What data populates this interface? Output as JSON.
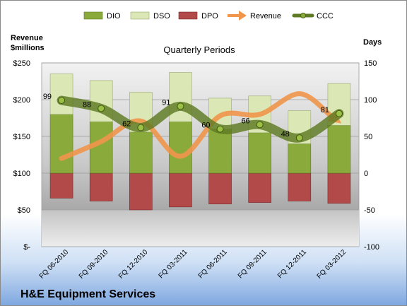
{
  "chart_data": {
    "type": "bar",
    "title": "Quarterly Periods",
    "company": "H&E Equipment Services",
    "left_axis": {
      "label_line1": "Revenue",
      "label_line2": "$millions",
      "ylim": [
        0,
        250
      ],
      "ticks": [
        0,
        50,
        100,
        150,
        200,
        250
      ],
      "tick_labels": [
        "$-",
        "$50",
        "$100",
        "$150",
        "$200",
        "$250"
      ]
    },
    "right_axis": {
      "label": "Days",
      "ylim": [
        -100,
        150
      ],
      "ticks": [
        -100,
        -50,
        0,
        50,
        100,
        150
      ],
      "tick_labels": [
        "-100",
        "-50",
        "0",
        "50",
        "100",
        "150"
      ]
    },
    "categories": [
      "FQ 06-2010",
      "FQ 09-2010",
      "FQ 12-2010",
      "FQ 03-2011",
      "FQ 06-2011",
      "FQ 09-2011",
      "FQ 12-2011",
      "FQ 03-2012"
    ],
    "series": [
      {
        "name": "DIO",
        "axis": "right",
        "kind": "stacked-bar",
        "color": "#8aab3c",
        "values": [
          80,
          70,
          56,
          70,
          60,
          55,
          40,
          65
        ]
      },
      {
        "name": "DSO",
        "axis": "right",
        "kind": "stacked-bar",
        "color": "#dbe7b4",
        "values": [
          55,
          56,
          54,
          67,
          42,
          50,
          45,
          57
        ]
      },
      {
        "name": "DPO",
        "axis": "right",
        "kind": "negative-bar",
        "color": "#b24a4a",
        "values": [
          -34,
          -38,
          -50,
          -46,
          -42,
          -40,
          -38,
          -41
        ]
      },
      {
        "name": "Revenue",
        "axis": "left",
        "kind": "line",
        "color": "#f0954a",
        "values": [
          120,
          143,
          171,
          123,
          178,
          180,
          208,
          170
        ]
      },
      {
        "name": "CCC",
        "axis": "right",
        "kind": "line",
        "color": "#5e7a22",
        "values": [
          99,
          88,
          62,
          91,
          60,
          66,
          48,
          81
        ]
      }
    ],
    "data_labels": [
      "99",
      "88",
      "62",
      "91",
      "60",
      "66",
      "48",
      "81"
    ],
    "legend_position": "top"
  }
}
